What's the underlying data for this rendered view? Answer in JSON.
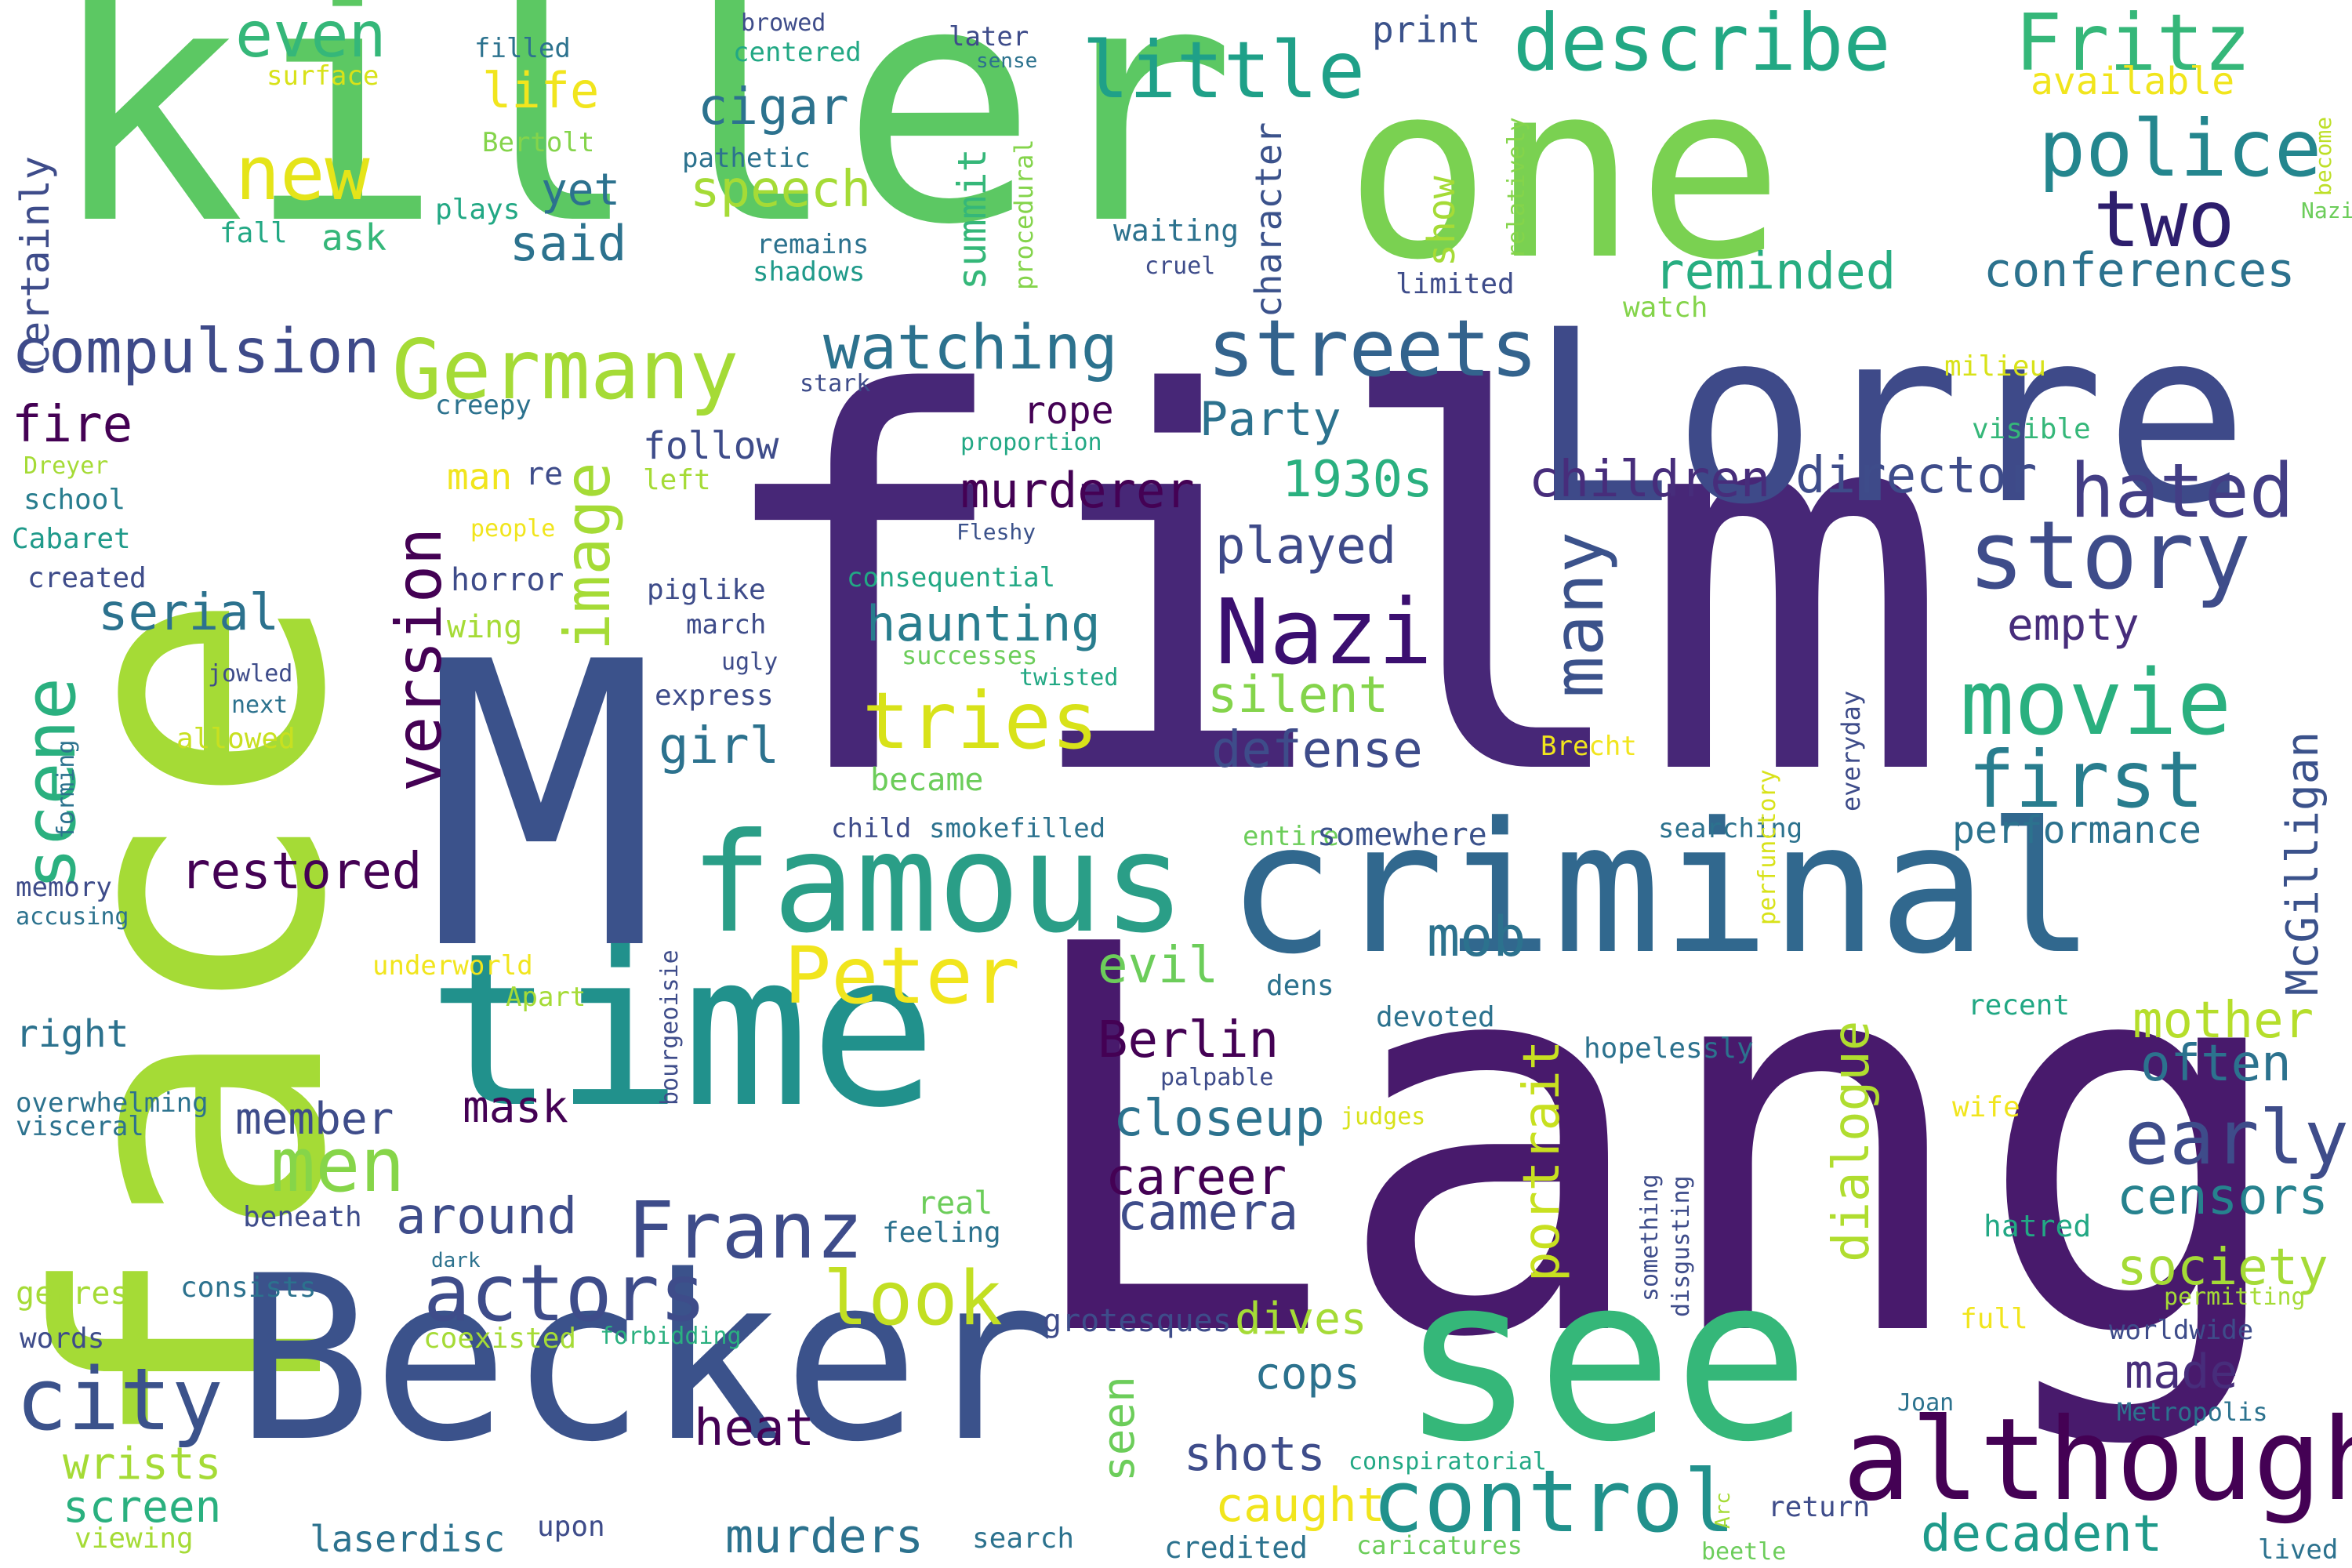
{
  "words": [
    {
      "text": "killer",
      "color": "#5cc863"
    },
    {
      "text": "one",
      "color": "#7ad151"
    },
    {
      "text": "film",
      "color": "#472777"
    },
    {
      "text": "face",
      "color": "#a5db36"
    },
    {
      "text": "Lang",
      "color": "#481a6c"
    },
    {
      "text": "M",
      "color": "#3b528b"
    },
    {
      "text": "Lorre",
      "color": "#3e4a89"
    },
    {
      "text": "Becker",
      "color": "#3b528b"
    },
    {
      "text": "time",
      "color": "#21918c"
    },
    {
      "text": "criminal",
      "color": "#31688e"
    },
    {
      "text": "see",
      "color": "#35b779"
    },
    {
      "text": "famous",
      "color": "#2a9e87"
    },
    {
      "text": "although",
      "color": "#440154"
    },
    {
      "text": "control",
      "color": "#21918c"
    },
    {
      "text": "Germany",
      "color": "#a5db36"
    },
    {
      "text": "little",
      "color": "#1fa088"
    },
    {
      "text": "describe",
      "color": "#22a884"
    },
    {
      "text": "Fritz",
      "color": "#35b779"
    },
    {
      "text": "police",
      "color": "#24868e"
    },
    {
      "text": "two",
      "color": "#2d1e6d"
    },
    {
      "text": "streets",
      "color": "#33638d"
    },
    {
      "text": "story",
      "color": "#3e4c8a"
    },
    {
      "text": "Nazi",
      "color": "#3b0f70"
    },
    {
      "text": "movie",
      "color": "#2ab07f"
    },
    {
      "text": "first",
      "color": "#287d8e"
    },
    {
      "text": "hated",
      "color": "#433e85"
    },
    {
      "text": "early",
      "color": "#3e4c8a"
    },
    {
      "text": "actors",
      "color": "#3e4c8a"
    },
    {
      "text": "city",
      "color": "#3b528b"
    },
    {
      "text": "Franz",
      "color": "#3e4c8a"
    },
    {
      "text": "Peter",
      "color": "#f1e51d"
    },
    {
      "text": "tries",
      "color": "#d8e219"
    },
    {
      "text": "look",
      "color": "#c2df23"
    },
    {
      "text": "new",
      "color": "#e5e419"
    },
    {
      "text": "image",
      "color": "#a5db36"
    },
    {
      "text": "version",
      "color": "#440154"
    },
    {
      "text": "scene",
      "color": "#2ab07f"
    },
    {
      "text": "men",
      "color": "#86d549"
    },
    {
      "text": "compulsion",
      "color": "#3e4a89"
    },
    {
      "text": "watching",
      "color": "#2c728e"
    },
    {
      "text": "conferences",
      "color": "#2c728e"
    },
    {
      "text": "reminded",
      "color": "#27ad81"
    },
    {
      "text": "children",
      "color": "#472d7b"
    },
    {
      "text": "director",
      "color": "#3e4c8a"
    },
    {
      "text": "many",
      "color": "#3b528b"
    },
    {
      "text": "murderer",
      "color": "#440154"
    },
    {
      "text": "haunting",
      "color": "#287d8e"
    },
    {
      "text": "played",
      "color": "#3e4a89"
    },
    {
      "text": "silent",
      "color": "#84d44b"
    },
    {
      "text": "defense",
      "color": "#3e4c8a"
    },
    {
      "text": "mob",
      "color": "#2c728e"
    },
    {
      "text": "evil",
      "color": "#6ccd5a"
    },
    {
      "text": "closeup",
      "color": "#2c728e"
    },
    {
      "text": "Berlin",
      "color": "#440154"
    },
    {
      "text": "dialogue",
      "color": "#b0dd2f"
    },
    {
      "text": "portrait",
      "color": "#c8e020"
    },
    {
      "text": "mother",
      "color": "#b5de2b"
    },
    {
      "text": "often",
      "color": "#2c728e"
    },
    {
      "text": "censors",
      "color": "#26828e"
    },
    {
      "text": "society",
      "color": "#a5db36"
    },
    {
      "text": "decadent",
      "color": "#1f9a8a"
    },
    {
      "text": "made",
      "color": "#472d7b"
    },
    {
      "text": "McGilligan",
      "color": "#3b528b"
    },
    {
      "text": "performance",
      "color": "#2c728e"
    },
    {
      "text": "empty",
      "color": "#472d7b"
    },
    {
      "text": "1930s",
      "color": "#2ab07f"
    },
    {
      "text": "Party",
      "color": "#2c728e"
    },
    {
      "text": "rope",
      "color": "#440154"
    },
    {
      "text": "follow",
      "color": "#3e4c8a"
    },
    {
      "text": "summit",
      "color": "#35b779"
    },
    {
      "text": "character",
      "color": "#3b528b"
    },
    {
      "text": "show",
      "color": "#a5db36"
    },
    {
      "text": "speech",
      "color": "#a5db36"
    },
    {
      "text": "cigar",
      "color": "#2c728e"
    },
    {
      "text": "said",
      "color": "#2c728e"
    },
    {
      "text": "yet",
      "color": "#2c728e"
    },
    {
      "text": "life",
      "color": "#f1e51d"
    },
    {
      "text": "even",
      "color": "#35b779"
    },
    {
      "text": "ask",
      "color": "#35b779"
    },
    {
      "text": "fall",
      "color": "#22a884"
    },
    {
      "text": "plays",
      "color": "#22a884"
    },
    {
      "text": "Bertolt",
      "color": "#84d44b"
    },
    {
      "text": "pathetic",
      "color": "#2c728e"
    },
    {
      "text": "remains",
      "color": "#2c728e"
    },
    {
      "text": "shadows",
      "color": "#1f9a8a"
    },
    {
      "text": "filled",
      "color": "#2c728e"
    },
    {
      "text": "browed",
      "color": "#3e4c8a"
    },
    {
      "text": "centered",
      "color": "#22a884"
    },
    {
      "text": "later",
      "color": "#3e4c8a"
    },
    {
      "text": "sense",
      "color": "#2c728e"
    },
    {
      "text": "print",
      "color": "#3b528b"
    },
    {
      "text": "surface",
      "color": "#d8e219"
    },
    {
      "text": "Certainly",
      "color": "#3e4c8a"
    },
    {
      "text": "available",
      "color": "#f1e51d"
    },
    {
      "text": "become",
      "color": "#bddf26"
    },
    {
      "text": "Nazism",
      "color": "#6ccd5a"
    },
    {
      "text": "relatively",
      "color": "#84d44b"
    },
    {
      "text": "procedural",
      "color": "#84d44b"
    },
    {
      "text": "waiting",
      "color": "#2c728e"
    },
    {
      "text": "cruel",
      "color": "#3e4c8a"
    },
    {
      "text": "limited",
      "color": "#3e4c8a"
    },
    {
      "text": "watch",
      "color": "#84d44b"
    },
    {
      "text": "milieu",
      "color": "#d8e219"
    },
    {
      "text": "visible",
      "color": "#35b779"
    },
    {
      "text": "proportion",
      "color": "#22a884"
    },
    {
      "text": "stark",
      "color": "#3e4c8a"
    },
    {
      "text": "creepy",
      "color": "#2c728e"
    },
    {
      "text": "fire",
      "color": "#440154"
    },
    {
      "text": "Dreyer",
      "color": "#a5db36"
    },
    {
      "text": "school",
      "color": "#287d8e"
    },
    {
      "text": "Cabaret",
      "color": "#1f9a8a"
    },
    {
      "text": "created",
      "color": "#3e4c8a"
    },
    {
      "text": "man",
      "color": "#f1e51d"
    },
    {
      "text": "re",
      "color": "#3e4c8a"
    },
    {
      "text": "left",
      "color": "#a5db36"
    },
    {
      "text": "people",
      "color": "#f1e51d"
    },
    {
      "text": "horror",
      "color": "#3e4c8a"
    },
    {
      "text": "wing",
      "color": "#a5db36"
    },
    {
      "text": "serial",
      "color": "#2c728e"
    },
    {
      "text": "Fleshy",
      "color": "#3b528b"
    },
    {
      "text": "consequential",
      "color": "#22a884"
    },
    {
      "text": "piglike",
      "color": "#3e4c8a"
    },
    {
      "text": "march",
      "color": "#3e4c8a"
    },
    {
      "text": "ugly",
      "color": "#3e4c8a"
    },
    {
      "text": "successes",
      "color": "#6ccd5a"
    },
    {
      "text": "twisted",
      "color": "#22a884"
    },
    {
      "text": "express",
      "color": "#3e4c8a"
    },
    {
      "text": "jowled",
      "color": "#3e4c8a"
    },
    {
      "text": "next",
      "color": "#2c728e"
    },
    {
      "text": "allowed",
      "color": "#c8e020"
    },
    {
      "text": "forming",
      "color": "#2c728e"
    },
    {
      "text": "memory",
      "color": "#3e4c8a"
    },
    {
      "text": "accusing",
      "color": "#2c728e"
    },
    {
      "text": "girl",
      "color": "#2c728e"
    },
    {
      "text": "became",
      "color": "#6ccd5a"
    },
    {
      "text": "restored",
      "color": "#440154"
    },
    {
      "text": "child",
      "color": "#3e4c8a"
    },
    {
      "text": "smokefilled",
      "color": "#2c728e"
    },
    {
      "text": "entire",
      "color": "#6ccd5a"
    },
    {
      "text": "somewhere",
      "color": "#3b528b"
    },
    {
      "text": "searching",
      "color": "#2c728e"
    },
    {
      "text": "everyday",
      "color": "#3e4c8a"
    },
    {
      "text": "perfunctory",
      "color": "#d8e219"
    },
    {
      "text": "Brecht",
      "color": "#f1e51d"
    },
    {
      "text": "underworld",
      "color": "#f1e51d"
    },
    {
      "text": "Apart",
      "color": "#a5db36"
    },
    {
      "text": "bourgeoisie",
      "color": "#3e4c8a"
    },
    {
      "text": "right",
      "color": "#2c728e"
    },
    {
      "text": "overwhelming",
      "color": "#2c728e"
    },
    {
      "text": "visceral",
      "color": "#2c728e"
    },
    {
      "text": "member",
      "color": "#3e4c8a"
    },
    {
      "text": "mask",
      "color": "#440154"
    },
    {
      "text": "palpable",
      "color": "#3e4c8a"
    },
    {
      "text": "judges",
      "color": "#d8e219"
    },
    {
      "text": "devoted",
      "color": "#2c728e"
    },
    {
      "text": "dens",
      "color": "#2c728e"
    },
    {
      "text": "hopelessly",
      "color": "#2c728e"
    },
    {
      "text": "recent",
      "color": "#22a884"
    },
    {
      "text": "wife",
      "color": "#f1e51d"
    },
    {
      "text": "lived",
      "color": "#2c728e"
    },
    {
      "text": "around",
      "color": "#3e4c8a"
    },
    {
      "text": "career",
      "color": "#440154"
    },
    {
      "text": "camera",
      "color": "#3e4c8a"
    },
    {
      "text": "real",
      "color": "#6ccd5a"
    },
    {
      "text": "feeling",
      "color": "#2c728e"
    },
    {
      "text": "beneath",
      "color": "#3e4c8a"
    },
    {
      "text": "dark",
      "color": "#2c728e"
    },
    {
      "text": "genres",
      "color": "#a5db36"
    },
    {
      "text": "consists",
      "color": "#2c728e"
    },
    {
      "text": "coexisted",
      "color": "#a5db36"
    },
    {
      "text": "forbidding",
      "color": "#2ab07f"
    },
    {
      "text": "grotesques",
      "color": "#3e4c8a"
    },
    {
      "text": "dives",
      "color": "#a5db36"
    },
    {
      "text": "cops",
      "color": "#2c728e"
    },
    {
      "text": "seen",
      "color": "#6ccd5a"
    },
    {
      "text": "shots",
      "color": "#3e4c8a"
    },
    {
      "text": "caught",
      "color": "#f1e51d"
    },
    {
      "text": "heat",
      "color": "#440154"
    },
    {
      "text": "something",
      "color": "#3e4c8a"
    },
    {
      "text": "disgusting",
      "color": "#3e4c8a"
    },
    {
      "text": "hatred",
      "color": "#22a884"
    },
    {
      "text": "permitting",
      "color": "#a5db36"
    },
    {
      "text": "worldwide",
      "color": "#3e4c8a"
    },
    {
      "text": "full",
      "color": "#f1e51d"
    },
    {
      "text": "Metropolis",
      "color": "#2c728e"
    },
    {
      "text": "Joan",
      "color": "#2c728e"
    },
    {
      "text": "Arc",
      "color": "#a5db36"
    },
    {
      "text": "conspiratorial",
      "color": "#22a884"
    },
    {
      "text": "words",
      "color": "#3e4c8a"
    },
    {
      "text": "wrists",
      "color": "#a5db36"
    },
    {
      "text": "screen",
      "color": "#2ab07f"
    },
    {
      "text": "viewing",
      "color": "#a5db36"
    },
    {
      "text": "laserdisc",
      "color": "#2c728e"
    },
    {
      "text": "upon",
      "color": "#3e4c8a"
    },
    {
      "text": "murders",
      "color": "#2c728e"
    },
    {
      "text": "search",
      "color": "#2c728e"
    },
    {
      "text": "credited",
      "color": "#2c728e"
    },
    {
      "text": "caricatures",
      "color": "#6ccd5a"
    },
    {
      "text": "beetle",
      "color": "#6ccd5a"
    },
    {
      "text": "return",
      "color": "#3e4c8a"
    }
  ]
}
